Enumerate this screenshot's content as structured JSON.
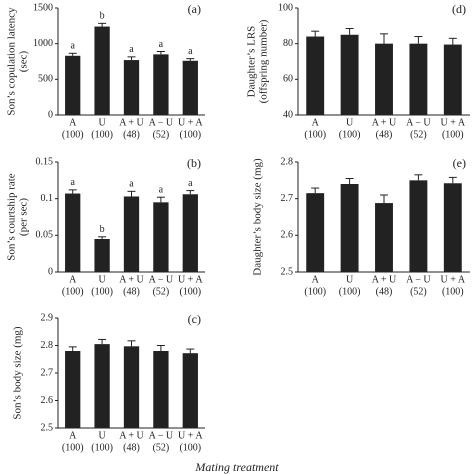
{
  "x_label": "Mating treatment",
  "chart_data": [
    {
      "type": "bar",
      "panel": "(a)",
      "ylabel": [
        "Son’s copulation latency",
        "(sec)"
      ],
      "categories": [
        "A",
        "U",
        "A + U",
        "A − U",
        "U + A"
      ],
      "sample_sizes": [
        "(100)",
        "(100)",
        "(48)",
        "(52)",
        "(100)"
      ],
      "values": [
        830,
        1240,
        770,
        850,
        760
      ],
      "errors": [
        35,
        45,
        45,
        40,
        30
      ],
      "letters": [
        "a",
        "b",
        "a",
        "a",
        "a"
      ],
      "color": "#222222",
      "ylim": [
        0,
        1500
      ],
      "yticks": [
        0,
        500,
        1000,
        1500
      ]
    },
    {
      "type": "bar",
      "panel": "(b)",
      "ylabel": [
        "Son’s courtship rate",
        "(per sec)"
      ],
      "categories": [
        "A",
        "U",
        "A + U",
        "A − U",
        "U + A"
      ],
      "sample_sizes": [
        "(100)",
        "(100)",
        "(48)",
        "(52)",
        "(100)"
      ],
      "values": [
        0.107,
        0.045,
        0.103,
        0.095,
        0.106
      ],
      "errors": [
        0.005,
        0.003,
        0.007,
        0.007,
        0.005
      ],
      "letters": [
        "a",
        "b",
        "a",
        "a",
        "a"
      ],
      "color": "#222222",
      "ylim": [
        0,
        0.15
      ],
      "yticks": [
        0,
        0.05,
        0.1,
        0.15
      ]
    },
    {
      "type": "bar",
      "panel": "(c)",
      "ylabel": [
        "Son’s body size (mg)"
      ],
      "categories": [
        "A",
        "U",
        "A + U",
        "A − U",
        "U + A"
      ],
      "sample_sizes": [
        "(100)",
        "(100)",
        "(48)",
        "(52)",
        "(100)"
      ],
      "values": [
        2.78,
        2.805,
        2.797,
        2.78,
        2.772
      ],
      "errors": [
        0.015,
        0.017,
        0.02,
        0.02,
        0.015
      ],
      "color": "#222222",
      "ylim": [
        2.5,
        2.9
      ],
      "yticks": [
        2.5,
        2.6,
        2.7,
        2.8,
        2.9
      ]
    },
    {
      "type": "bar",
      "panel": "(d)",
      "ylabel": [
        "Daughter’s LRS",
        "(offspring number)"
      ],
      "categories": [
        "A",
        "U",
        "A + U",
        "A − U",
        "U + A"
      ],
      "sample_sizes": [
        "(100)",
        "(100)",
        "(48)",
        "(52)",
        "(100)"
      ],
      "values": [
        84,
        85,
        80,
        80,
        79.5
      ],
      "errors": [
        3,
        3.5,
        5.5,
        4,
        3.5
      ],
      "color": "#222222",
      "ylim": [
        40,
        100
      ],
      "yticks": [
        40,
        60,
        80,
        100
      ]
    },
    {
      "type": "bar",
      "panel": "(e)",
      "ylabel": [
        "Daughter’s body size (mg)"
      ],
      "categories": [
        "A",
        "U",
        "A + U",
        "A − U",
        "U + A"
      ],
      "sample_sizes": [
        "(100)",
        "(100)",
        "(48)",
        "(52)",
        "(100)"
      ],
      "values": [
        2.715,
        2.74,
        2.688,
        2.75,
        2.742
      ],
      "errors": [
        0.014,
        0.015,
        0.022,
        0.015,
        0.016
      ],
      "color": "#222222",
      "ylim": [
        2.5,
        2.8
      ],
      "yticks": [
        2.5,
        2.6,
        2.7,
        2.8
      ]
    }
  ]
}
